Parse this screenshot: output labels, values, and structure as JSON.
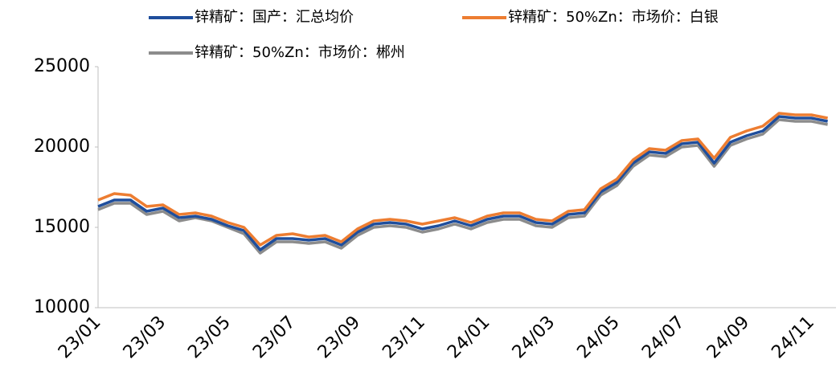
{
  "chart_data": {
    "type": "line",
    "categories": [
      "23/01",
      null,
      null,
      null,
      "23/03",
      null,
      null,
      null,
      "23/05",
      null,
      null,
      null,
      "23/07",
      null,
      null,
      null,
      "23/09",
      null,
      null,
      null,
      "23/11",
      null,
      null,
      null,
      "24/01",
      null,
      null,
      null,
      "24/03",
      null,
      null,
      null,
      "24/05",
      null,
      null,
      null,
      "24/07",
      null,
      null,
      null,
      "24/09",
      null,
      null,
      null,
      "24/11",
      null
    ],
    "series": [
      {
        "name": "锌精矿：国产：汇总均价",
        "color": "#1f4e9c",
        "values": [
          16300,
          16700,
          16700,
          16000,
          16200,
          15600,
          15700,
          15500,
          15100,
          14800,
          13600,
          14300,
          14300,
          14200,
          14300,
          13900,
          14700,
          15200,
          15300,
          15200,
          14900,
          15100,
          15400,
          15100,
          15500,
          15700,
          15700,
          15300,
          15200,
          15800,
          15900,
          17200,
          17800,
          19000,
          19700,
          19600,
          20200,
          20300,
          19000,
          20300,
          20700,
          21000,
          21900,
          21800,
          21800,
          21600
        ]
      },
      {
        "name": "锌精矿：50%Zn：市场价：白银",
        "color": "#ed7d31",
        "values": [
          16700,
          17100,
          17000,
          16300,
          16400,
          15800,
          15900,
          15700,
          15300,
          15000,
          13900,
          14500,
          14600,
          14400,
          14500,
          14100,
          14900,
          15400,
          15500,
          15400,
          15200,
          15400,
          15600,
          15300,
          15700,
          15900,
          15900,
          15500,
          15400,
          16000,
          16100,
          17400,
          18000,
          19200,
          19900,
          19800,
          20400,
          20500,
          19300,
          20600,
          21000,
          21300,
          22100,
          22000,
          22000,
          21800
        ]
      },
      {
        "name": "锌精矿：50%Zn：市场价：郴州",
        "color": "#8c8c8c",
        "values": [
          16100,
          16500,
          16500,
          15800,
          16000,
          15400,
          15600,
          15400,
          15000,
          14600,
          13400,
          14100,
          14100,
          14000,
          14100,
          13700,
          14500,
          15000,
          15100,
          15000,
          14700,
          14900,
          15200,
          14900,
          15300,
          15500,
          15500,
          15100,
          15000,
          15600,
          15700,
          17000,
          17600,
          18800,
          19500,
          19400,
          20000,
          20100,
          18800,
          20100,
          20500,
          20800,
          21700,
          21600,
          21600,
          21400
        ]
      }
    ],
    "ylim": [
      10000,
      25000
    ],
    "yticks": [
      10000,
      15000,
      20000,
      25000
    ],
    "grid": false,
    "legend": "top"
  }
}
